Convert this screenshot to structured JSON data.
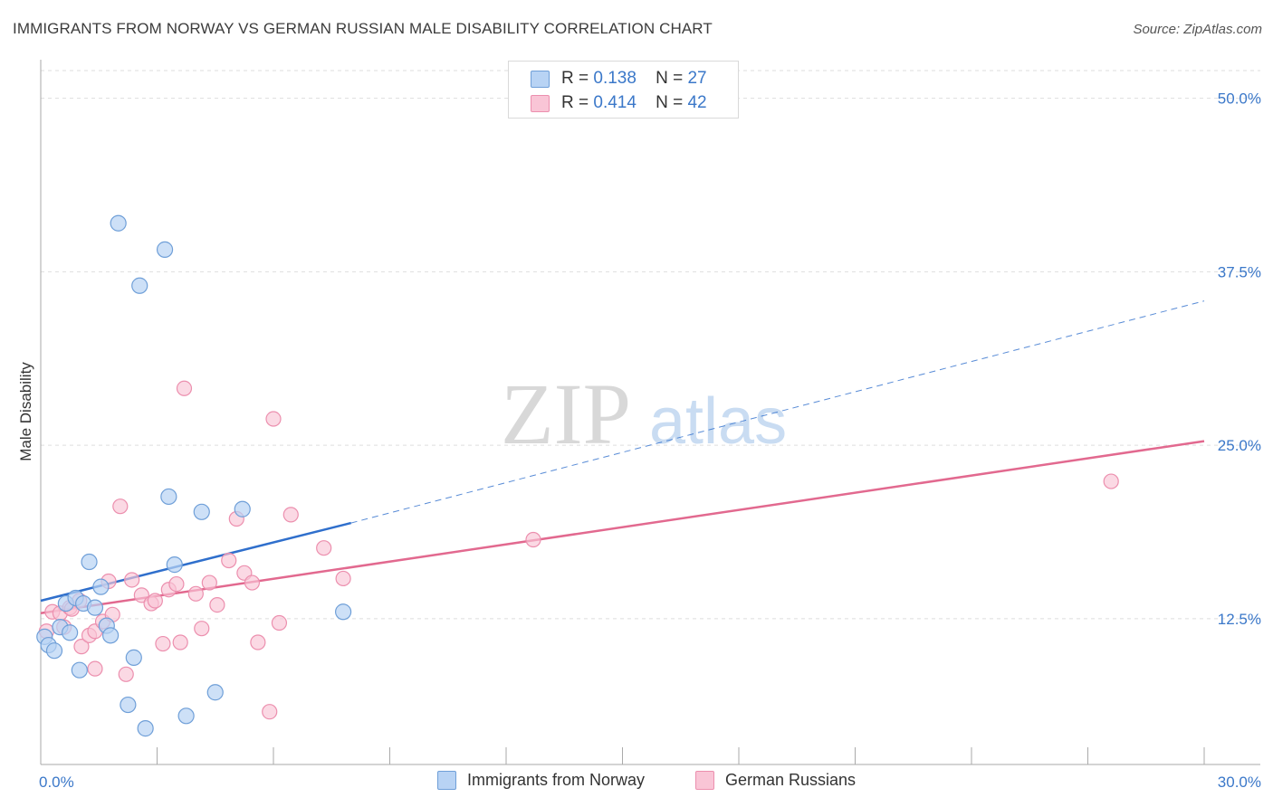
{
  "title": "IMMIGRANTS FROM NORWAY VS GERMAN RUSSIAN MALE DISABILITY CORRELATION CHART",
  "source": "Source: ZipAtlas.com",
  "watermark": {
    "zip": "ZIP",
    "atlas": "atlas"
  },
  "legend": {
    "rows": [
      {
        "r_label": "R =",
        "r_value": "0.138",
        "n_label": "N =",
        "n_value": "27"
      },
      {
        "r_label": "R =",
        "r_value": "0.414",
        "n_label": "N =",
        "n_value": "42"
      }
    ]
  },
  "colors": {
    "norway_fill": "#b8d3f4",
    "norway_stroke": "#6f9fd8",
    "norway_line": "#2f6fcc",
    "german_fill": "#f9c5d6",
    "german_stroke": "#ec8fae",
    "german_line": "#e2698f",
    "axis_text": "#3b78c9",
    "grid": "#dedede"
  },
  "chart_data": {
    "type": "scatter",
    "title": "IMMIGRANTS FROM NORWAY VS GERMAN RUSSIAN MALE DISABILITY CORRELATION CHART",
    "xlabel": "",
    "ylabel": "Male Disability",
    "xlim": [
      0,
      30
    ],
    "ylim": [
      2,
      52
    ],
    "x_ticks": [
      "0.0%",
      "30.0%"
    ],
    "y_ticks": [
      {
        "value": 12.5,
        "label": "12.5%"
      },
      {
        "value": 25.0,
        "label": "25.0%"
      },
      {
        "value": 37.5,
        "label": "37.5%"
      },
      {
        "value": 50.0,
        "label": "50.0%"
      }
    ],
    "grid": true,
    "legend_position": "top-center",
    "series": [
      {
        "name": "Immigrants from Norway",
        "r": 0.138,
        "n": 27,
        "points": [
          [
            0.1,
            11.2
          ],
          [
            0.2,
            10.6
          ],
          [
            0.35,
            10.2
          ],
          [
            0.5,
            11.9
          ],
          [
            0.65,
            13.6
          ],
          [
            0.75,
            11.5
          ],
          [
            0.9,
            14.0
          ],
          [
            1.0,
            8.8
          ],
          [
            1.1,
            13.6
          ],
          [
            1.25,
            16.6
          ],
          [
            1.4,
            13.3
          ],
          [
            1.55,
            14.8
          ],
          [
            1.7,
            12.0
          ],
          [
            1.8,
            11.3
          ],
          [
            2.0,
            41.0
          ],
          [
            2.25,
            6.3
          ],
          [
            2.4,
            9.7
          ],
          [
            2.55,
            36.5
          ],
          [
            2.7,
            4.6
          ],
          [
            3.2,
            39.1
          ],
          [
            3.3,
            21.3
          ],
          [
            3.45,
            16.4
          ],
          [
            3.75,
            5.5
          ],
          [
            4.15,
            20.2
          ],
          [
            4.5,
            7.2
          ],
          [
            5.2,
            20.4
          ],
          [
            7.8,
            13.0
          ]
        ],
        "trend": {
          "x0": 0,
          "y0": 13.8,
          "x1": 8.0,
          "y1": 19.4,
          "dash_to_x": 30,
          "dash_to_y": 35.4
        }
      },
      {
        "name": "German Russians",
        "r": 0.414,
        "n": 42,
        "points": [
          [
            0.15,
            11.6
          ],
          [
            0.3,
            13.0
          ],
          [
            0.5,
            12.9
          ],
          [
            0.6,
            11.9
          ],
          [
            0.75,
            13.3
          ],
          [
            0.8,
            13.2
          ],
          [
            1.0,
            13.8
          ],
          [
            1.05,
            10.5
          ],
          [
            1.25,
            11.3
          ],
          [
            1.4,
            11.6
          ],
          [
            1.4,
            8.9
          ],
          [
            1.6,
            12.3
          ],
          [
            1.75,
            15.2
          ],
          [
            1.85,
            12.8
          ],
          [
            2.05,
            20.6
          ],
          [
            2.2,
            8.5
          ],
          [
            2.35,
            15.3
          ],
          [
            2.6,
            14.2
          ],
          [
            2.85,
            13.6
          ],
          [
            2.95,
            13.8
          ],
          [
            3.15,
            10.7
          ],
          [
            3.3,
            14.6
          ],
          [
            3.5,
            15.0
          ],
          [
            3.6,
            10.8
          ],
          [
            3.7,
            29.1
          ],
          [
            4.0,
            14.3
          ],
          [
            4.15,
            11.8
          ],
          [
            4.35,
            15.1
          ],
          [
            4.55,
            13.5
          ],
          [
            4.85,
            16.7
          ],
          [
            5.05,
            19.7
          ],
          [
            5.25,
            15.8
          ],
          [
            5.45,
            15.1
          ],
          [
            5.6,
            10.8
          ],
          [
            5.9,
            5.8
          ],
          [
            6.0,
            26.9
          ],
          [
            6.15,
            12.2
          ],
          [
            6.45,
            20.0
          ],
          [
            7.3,
            17.6
          ],
          [
            7.8,
            15.4
          ],
          [
            12.7,
            18.2
          ],
          [
            27.6,
            22.4
          ]
        ],
        "trend": {
          "x0": 0,
          "y0": 12.9,
          "x1": 30,
          "y1": 25.3
        }
      }
    ]
  },
  "bottom_legend": {
    "norway": "Immigrants from Norway",
    "german": "German Russians"
  }
}
